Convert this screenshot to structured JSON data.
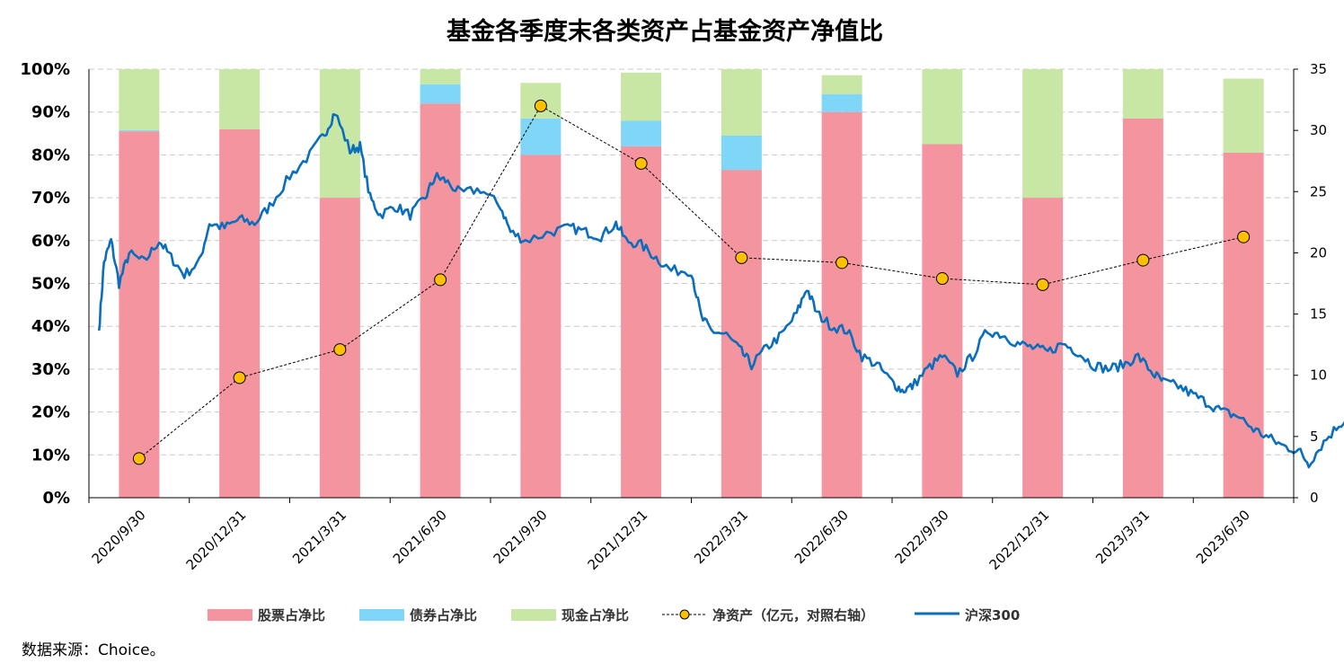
{
  "chart_data": {
    "type": "bar",
    "title": "基金各季度末各类资产占基金资产净值比",
    "source": "数据来源：Choice。",
    "categories": [
      "2020/9/30",
      "2020/12/31",
      "2021/3/31",
      "2021/6/30",
      "2021/9/30",
      "2021/12/31",
      "2022/3/31",
      "2022/6/30",
      "2022/9/30",
      "2022/12/31",
      "2023/3/31",
      "2023/6/30"
    ],
    "y_left": {
      "ticks": [
        "0%",
        "10%",
        "20%",
        "30%",
        "40%",
        "50%",
        "60%",
        "70%",
        "80%",
        "90%",
        "100%"
      ],
      "range": [
        0,
        100
      ]
    },
    "y_right": {
      "ticks": [
        "0",
        "5",
        "10",
        "15",
        "20",
        "25",
        "30",
        "35"
      ],
      "range": [
        0,
        35
      ]
    },
    "series": [
      {
        "name": "股票占净比",
        "kind": "stacked-bar",
        "color": "#f4949f",
        "values": [
          85.5,
          86.0,
          70.0,
          92.0,
          80.0,
          82.0,
          76.5,
          90.0,
          82.5,
          70.0,
          88.5,
          80.5
        ]
      },
      {
        "name": "债券占净比",
        "kind": "stacked-bar",
        "color": "#7fd6f6",
        "values": [
          0.3,
          0,
          0,
          4.5,
          8.5,
          6.0,
          8.0,
          4.2,
          0,
          0,
          0,
          0
        ]
      },
      {
        "name": "现金占净比",
        "kind": "stacked-bar",
        "color": "#c8e6a4",
        "values": [
          14.2,
          14.0,
          30.0,
          3.5,
          8.3,
          11.2,
          15.5,
          4.4,
          17.5,
          30.0,
          11.5,
          17.3
        ]
      },
      {
        "name": "净资产（亿元，对照右轴）",
        "kind": "line-markers",
        "axis": "right",
        "color": "#000000",
        "marker_color": "#ffc000",
        "values": [
          3.2,
          9.8,
          12.1,
          17.8,
          32.0,
          27.3,
          19.6,
          19.2,
          17.9,
          17.4,
          19.4,
          21.3
        ]
      },
      {
        "name": "沪深300",
        "kind": "line",
        "color": "#0a6ebd",
        "anchors": [
          [
            0.0,
            39
          ],
          [
            0.05,
            55
          ],
          [
            0.12,
            60
          ],
          [
            0.2,
            50
          ],
          [
            0.3,
            57
          ],
          [
            0.45,
            55
          ],
          [
            0.6,
            60
          ],
          [
            0.72,
            56
          ],
          [
            0.85,
            52
          ],
          [
            1.0,
            55
          ],
          [
            1.1,
            64
          ],
          [
            1.25,
            63
          ],
          [
            1.4,
            65
          ],
          [
            1.55,
            64
          ],
          [
            1.7,
            68
          ],
          [
            1.9,
            75
          ],
          [
            2.1,
            80
          ],
          [
            2.25,
            85
          ],
          [
            2.35,
            90
          ],
          [
            2.5,
            81
          ],
          [
            2.6,
            82
          ],
          [
            2.7,
            70
          ],
          [
            2.8,
            66
          ],
          [
            2.95,
            68
          ],
          [
            3.1,
            66
          ],
          [
            3.25,
            70
          ],
          [
            3.35,
            75
          ],
          [
            3.45,
            74
          ],
          [
            3.6,
            71
          ],
          [
            3.8,
            72
          ],
          [
            4.0,
            68
          ],
          [
            4.1,
            62
          ],
          [
            4.25,
            60
          ],
          [
            4.5,
            62
          ],
          [
            4.7,
            63
          ],
          [
            4.85,
            62
          ],
          [
            5.0,
            61
          ],
          [
            5.15,
            64
          ],
          [
            5.25,
            60
          ],
          [
            5.4,
            59
          ],
          [
            5.55,
            56
          ],
          [
            5.7,
            53
          ],
          [
            5.9,
            53
          ],
          [
            6.0,
            42
          ],
          [
            6.1,
            39
          ],
          [
            6.25,
            38
          ],
          [
            6.4,
            34
          ],
          [
            6.5,
            31
          ],
          [
            6.65,
            35
          ],
          [
            6.8,
            38
          ],
          [
            6.95,
            43
          ],
          [
            7.05,
            49
          ],
          [
            7.15,
            43
          ],
          [
            7.3,
            40
          ],
          [
            7.45,
            39
          ],
          [
            7.6,
            33
          ],
          [
            7.75,
            31
          ],
          [
            7.9,
            27
          ],
          [
            8.0,
            25
          ],
          [
            8.1,
            26
          ],
          [
            8.25,
            30
          ],
          [
            8.4,
            33
          ],
          [
            8.55,
            29
          ],
          [
            8.7,
            33
          ],
          [
            8.85,
            39
          ],
          [
            9.0,
            38
          ],
          [
            9.15,
            36
          ],
          [
            9.3,
            35
          ],
          [
            9.45,
            34
          ],
          [
            9.6,
            36
          ],
          [
            9.75,
            34
          ],
          [
            9.9,
            31
          ],
          [
            10.05,
            30
          ],
          [
            10.2,
            31
          ],
          [
            10.35,
            33
          ],
          [
            10.5,
            29
          ],
          [
            10.6,
            27
          ],
          [
            10.75,
            26
          ],
          [
            10.9,
            24
          ],
          [
            11.05,
            22
          ],
          [
            11.2,
            20
          ],
          [
            11.35,
            19
          ],
          [
            11.5,
            16
          ],
          [
            11.65,
            14
          ],
          [
            11.8,
            12
          ],
          [
            11.95,
            11
          ],
          [
            12.05,
            8
          ],
          [
            12.2,
            13
          ],
          [
            12.35,
            17
          ],
          [
            12.5,
            20
          ],
          [
            12.6,
            20.5
          ],
          [
            12.7,
            19
          ]
        ]
      }
    ],
    "legend_position": "bottom",
    "grid": true
  }
}
